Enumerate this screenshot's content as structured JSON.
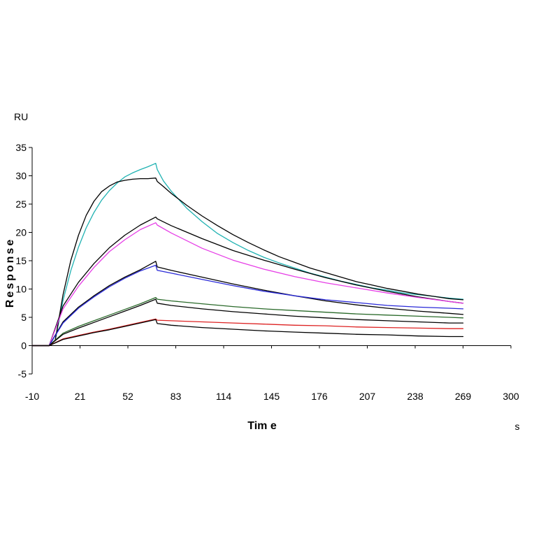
{
  "chart_data": {
    "type": "line",
    "title": "",
    "xlabel": "Tim e",
    "ylabel": "Response",
    "x_unit": "s",
    "y_unit": "RU",
    "xlim": [
      -10,
      300
    ],
    "ylim": [
      -5,
      35
    ],
    "x_ticks": [
      -10,
      21,
      52,
      83,
      114,
      145,
      176,
      207,
      238,
      269,
      300
    ],
    "y_ticks": [
      -5,
      0,
      5,
      10,
      15,
      20,
      25,
      30,
      35
    ],
    "legend": "none",
    "grid": false,
    "series": [
      {
        "color": "#20b2b2",
        "x": [
          -10,
          0,
          1,
          5,
          10,
          15,
          20,
          25,
          30,
          35,
          40,
          45,
          50,
          55,
          60,
          65,
          70,
          71,
          75,
          80,
          90,
          100,
          110,
          120,
          130,
          140,
          150,
          160,
          170,
          180,
          190,
          200,
          210,
          220,
          230,
          240,
          250,
          260,
          269
        ],
        "y": [
          0,
          0,
          0,
          1,
          8,
          13.2,
          17.4,
          20.8,
          23.5,
          25.7,
          27.4,
          28.7,
          29.8,
          30.5,
          31.1,
          31.6,
          32.2,
          31.1,
          29.1,
          27.3,
          24.3,
          21.9,
          19.8,
          18.2,
          16.8,
          15.6,
          14.6,
          13.7,
          12.8,
          12.1,
          11.4,
          10.8,
          10.2,
          9.8,
          9.3,
          9.0,
          8.7,
          8.4,
          8.2
        ]
      },
      {
        "color": "#000000",
        "x": [
          -10,
          0,
          1,
          5,
          10,
          15,
          20,
          25,
          30,
          35,
          40,
          45,
          50,
          55,
          60,
          65,
          70,
          71,
          75,
          80,
          90,
          100,
          110,
          120,
          130,
          140,
          150,
          160,
          170,
          180,
          190,
          200,
          210,
          220,
          230,
          240,
          250,
          260,
          269
        ],
        "y": [
          0,
          0,
          0,
          1,
          9,
          15,
          19.5,
          23,
          25.5,
          27.2,
          28.2,
          28.9,
          29.2,
          29.4,
          29.5,
          29.5,
          29.6,
          29.0,
          28.1,
          26.9,
          24.8,
          22.9,
          21.2,
          19.6,
          18.2,
          16.9,
          15.7,
          14.7,
          13.7,
          12.9,
          12.1,
          11.3,
          10.7,
          10.1,
          9.6,
          9.1,
          8.7,
          8.3,
          8.1
        ]
      },
      {
        "color": "#000000",
        "x": [
          -10,
          0,
          1,
          10,
          20,
          30,
          40,
          50,
          60,
          70,
          71,
          80,
          100,
          120,
          140,
          160,
          180,
          200,
          220,
          240,
          260,
          269
        ],
        "y": [
          0,
          0,
          0,
          7,
          11.2,
          14.5,
          17.3,
          19.5,
          21.3,
          22.7,
          22.4,
          21.2,
          18.9,
          16.8,
          15.1,
          13.5,
          12.0,
          10.7,
          9.6,
          8.6,
          7.8,
          7.5
        ]
      },
      {
        "color": "#e63ee6",
        "x": [
          -10,
          0,
          1,
          10,
          20,
          30,
          40,
          50,
          60,
          70,
          71,
          80,
          100,
          120,
          140,
          160,
          180,
          200,
          220,
          240,
          260,
          269
        ],
        "y": [
          0,
          0,
          0,
          6.5,
          10.5,
          13.8,
          16.6,
          18.7,
          20.5,
          21.7,
          21.3,
          19.9,
          17.2,
          15.1,
          13.5,
          12.2,
          11.1,
          10.2,
          9.3,
          8.5,
          7.8,
          7.5
        ]
      },
      {
        "color": "#000000",
        "x": [
          -10,
          0,
          1,
          10,
          20,
          30,
          40,
          50,
          60,
          70,
          71,
          80,
          100,
          120,
          140,
          160,
          180,
          200,
          220,
          240,
          260,
          269
        ],
        "y": [
          0,
          0,
          0,
          4.2,
          6.8,
          8.8,
          10.6,
          12.1,
          13.4,
          14.9,
          13.9,
          13.3,
          12.1,
          10.9,
          9.8,
          8.8,
          7.9,
          7.2,
          6.6,
          6.1,
          5.7,
          5.5
        ]
      },
      {
        "color": "#2a2ad8",
        "x": [
          -10,
          0,
          1,
          10,
          20,
          30,
          40,
          50,
          60,
          70,
          71,
          80,
          100,
          120,
          140,
          160,
          180,
          200,
          220,
          240,
          260,
          269
        ],
        "y": [
          0,
          0,
          0,
          4.0,
          6.6,
          8.6,
          10.4,
          11.9,
          13.2,
          14.2,
          13.3,
          12.8,
          11.7,
          10.6,
          9.6,
          8.8,
          8.1,
          7.6,
          7.1,
          6.8,
          6.6,
          6.5
        ]
      },
      {
        "color": "#2a6a2a",
        "x": [
          -10,
          0,
          1,
          10,
          20,
          30,
          40,
          50,
          60,
          70,
          71,
          80,
          100,
          120,
          140,
          160,
          180,
          200,
          220,
          240,
          260,
          269
        ],
        "y": [
          0,
          0,
          0,
          2.2,
          3.4,
          4.4,
          5.4,
          6.4,
          7.4,
          8.5,
          8.2,
          7.9,
          7.4,
          6.9,
          6.5,
          6.2,
          5.9,
          5.6,
          5.4,
          5.2,
          5.0,
          4.9
        ]
      },
      {
        "color": "#000000",
        "x": [
          -10,
          0,
          1,
          10,
          20,
          30,
          40,
          50,
          60,
          70,
          71,
          80,
          100,
          120,
          140,
          160,
          180,
          200,
          220,
          240,
          260,
          269
        ],
        "y": [
          0,
          0,
          0,
          2.0,
          3.1,
          4.1,
          5.1,
          6.1,
          7.1,
          8.2,
          7.5,
          7.1,
          6.5,
          6.0,
          5.6,
          5.2,
          4.9,
          4.6,
          4.4,
          4.2,
          4.0,
          4.0
        ]
      },
      {
        "color": "#dd2222",
        "x": [
          -10,
          0,
          1,
          10,
          20,
          30,
          40,
          50,
          60,
          70,
          71,
          80,
          100,
          120,
          140,
          160,
          180,
          200,
          220,
          240,
          260,
          269
        ],
        "y": [
          0,
          0,
          0,
          1.2,
          1.8,
          2.4,
          2.9,
          3.5,
          4.1,
          4.7,
          4.5,
          4.4,
          4.2,
          4.0,
          3.8,
          3.6,
          3.5,
          3.3,
          3.2,
          3.1,
          3.0,
          3.0
        ]
      },
      {
        "color": "#000000",
        "x": [
          -10,
          0,
          1,
          10,
          20,
          30,
          40,
          50,
          60,
          70,
          71,
          80,
          100,
          120,
          140,
          160,
          180,
          200,
          220,
          240,
          260,
          269
        ],
        "y": [
          0,
          0,
          0,
          1.1,
          1.7,
          2.3,
          2.8,
          3.4,
          4.0,
          4.6,
          3.9,
          3.6,
          3.2,
          2.9,
          2.6,
          2.4,
          2.2,
          2.0,
          1.9,
          1.7,
          1.6,
          1.6
        ]
      }
    ]
  }
}
